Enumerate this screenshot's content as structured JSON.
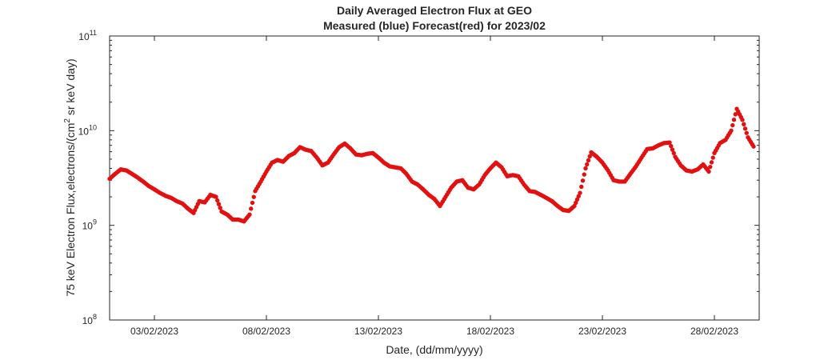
{
  "chart_data": {
    "type": "scatter",
    "title": "Daily Averaged Electron Flux at GEO",
    "subtitle": "Measured (blue) Forecast(red) for 2023/02",
    "xlabel": "Date, (dd/mm/yyyy)",
    "ylabel_main": "75 keV Electron Flux,electrons/(cm",
    "ylabel_sup": "2",
    "ylabel_rest": " sr keV day)",
    "y_scale": "log",
    "ylim": [
      100000000.0,
      100000000000.0
    ],
    "xlim": [
      "2023-02-01",
      "2023-03-02"
    ],
    "grid": false,
    "point_color": "#e41010",
    "x_ticks": [
      {
        "date": "2023-02-03",
        "label": "03/02/2023"
      },
      {
        "date": "2023-02-08",
        "label": "08/02/2023"
      },
      {
        "date": "2023-02-13",
        "label": "13/02/2023"
      },
      {
        "date": "2023-02-18",
        "label": "18/02/2023"
      },
      {
        "date": "2023-02-23",
        "label": "23/02/2023"
      },
      {
        "date": "2023-02-28",
        "label": "28/02/2023"
      }
    ],
    "y_ticks": [
      {
        "value": 100000000.0,
        "base": "10",
        "exp": "8"
      },
      {
        "value": 1000000000.0,
        "base": "10",
        "exp": "9"
      },
      {
        "value": 10000000000.0,
        "base": "10",
        "exp": "10"
      },
      {
        "value": 100000000000.0,
        "base": "10",
        "exp": "11"
      }
    ],
    "series": [
      {
        "points": [
          [
            "2023-02-01 00:00",
            3100000000.0
          ],
          [
            "2023-02-01 06:00",
            3500000000.0
          ],
          [
            "2023-02-01 12:00",
            3900000000.0
          ],
          [
            "2023-02-01 18:00",
            3800000000.0
          ],
          [
            "2023-02-02 00:00",
            3500000000.0
          ],
          [
            "2023-02-02 06:00",
            3200000000.0
          ],
          [
            "2023-02-02 12:00",
            2900000000.0
          ],
          [
            "2023-02-02 18:00",
            2600000000.0
          ],
          [
            "2023-02-03 00:00",
            2400000000.0
          ],
          [
            "2023-02-03 06:00",
            2200000000.0
          ],
          [
            "2023-02-03 12:00",
            2050000000.0
          ],
          [
            "2023-02-03 18:00",
            1950000000.0
          ],
          [
            "2023-02-04 00:00",
            1800000000.0
          ],
          [
            "2023-02-04 06:00",
            1700000000.0
          ],
          [
            "2023-02-04 12:00",
            1500000000.0
          ],
          [
            "2023-02-04 18:00",
            1350000000.0
          ],
          [
            "2023-02-05 00:00",
            1800000000.0
          ],
          [
            "2023-02-05 06:00",
            1750000000.0
          ],
          [
            "2023-02-05 12:00",
            2100000000.0
          ],
          [
            "2023-02-05 18:00",
            2000000000.0
          ],
          [
            "2023-02-06 00:00",
            1400000000.0
          ],
          [
            "2023-02-06 06:00",
            1300000000.0
          ],
          [
            "2023-02-06 12:00",
            1150000000.0
          ],
          [
            "2023-02-06 18:00",
            1150000000.0
          ],
          [
            "2023-02-07 00:00",
            1100000000.0
          ],
          [
            "2023-02-07 06:00",
            1300000000.0
          ],
          [
            "2023-02-07 12:00",
            2300000000.0
          ],
          [
            "2023-02-07 18:00",
            2900000000.0
          ],
          [
            "2023-02-08 00:00",
            3700000000.0
          ],
          [
            "2023-02-08 06:00",
            4600000000.0
          ],
          [
            "2023-02-08 12:00",
            4900000000.0
          ],
          [
            "2023-02-08 18:00",
            4700000000.0
          ],
          [
            "2023-02-09 00:00",
            5400000000.0
          ],
          [
            "2023-02-09 06:00",
            5800000000.0
          ],
          [
            "2023-02-09 12:00",
            6700000000.0
          ],
          [
            "2023-02-09 18:00",
            6300000000.0
          ],
          [
            "2023-02-10 00:00",
            6100000000.0
          ],
          [
            "2023-02-10 06:00",
            5200000000.0
          ],
          [
            "2023-02-10 12:00",
            4300000000.0
          ],
          [
            "2023-02-10 18:00",
            4600000000.0
          ],
          [
            "2023-02-11 00:00",
            5600000000.0
          ],
          [
            "2023-02-11 06:00",
            6700000000.0
          ],
          [
            "2023-02-11 12:00",
            7300000000.0
          ],
          [
            "2023-02-11 18:00",
            6500000000.0
          ],
          [
            "2023-02-12 00:00",
            5600000000.0
          ],
          [
            "2023-02-12 06:00",
            5500000000.0
          ],
          [
            "2023-02-12 12:00",
            5700000000.0
          ],
          [
            "2023-02-12 18:00",
            5800000000.0
          ],
          [
            "2023-02-13 00:00",
            5200000000.0
          ],
          [
            "2023-02-13 06:00",
            4600000000.0
          ],
          [
            "2023-02-13 12:00",
            4200000000.0
          ],
          [
            "2023-02-13 18:00",
            4100000000.0
          ],
          [
            "2023-02-14 00:00",
            4000000000.0
          ],
          [
            "2023-02-14 06:00",
            3500000000.0
          ],
          [
            "2023-02-14 12:00",
            2900000000.0
          ],
          [
            "2023-02-14 18:00",
            2700000000.0
          ],
          [
            "2023-02-15 00:00",
            2400000000.0
          ],
          [
            "2023-02-15 06:00",
            2100000000.0
          ],
          [
            "2023-02-15 12:00",
            1900000000.0
          ],
          [
            "2023-02-15 18:00",
            1600000000.0
          ],
          [
            "2023-02-16 00:00",
            2000000000.0
          ],
          [
            "2023-02-16 06:00",
            2500000000.0
          ],
          [
            "2023-02-16 12:00",
            2900000000.0
          ],
          [
            "2023-02-16 18:00",
            3000000000.0
          ],
          [
            "2023-02-17 00:00",
            2500000000.0
          ],
          [
            "2023-02-17 06:00",
            2400000000.0
          ],
          [
            "2023-02-17 12:00",
            2700000000.0
          ],
          [
            "2023-02-17 18:00",
            3400000000.0
          ],
          [
            "2023-02-18 00:00",
            4000000000.0
          ],
          [
            "2023-02-18 06:00",
            4600000000.0
          ],
          [
            "2023-02-18 12:00",
            4100000000.0
          ],
          [
            "2023-02-18 18:00",
            3300000000.0
          ],
          [
            "2023-02-19 00:00",
            3400000000.0
          ],
          [
            "2023-02-19 06:00",
            3300000000.0
          ],
          [
            "2023-02-19 12:00",
            2700000000.0
          ],
          [
            "2023-02-19 18:00",
            2300000000.0
          ],
          [
            "2023-02-20 00:00",
            2250000000.0
          ],
          [
            "2023-02-20 06:00",
            2100000000.0
          ],
          [
            "2023-02-20 12:00",
            1950000000.0
          ],
          [
            "2023-02-20 18:00",
            1800000000.0
          ],
          [
            "2023-02-21 00:00",
            1600000000.0
          ],
          [
            "2023-02-21 06:00",
            1450000000.0
          ],
          [
            "2023-02-21 12:00",
            1420000000.0
          ],
          [
            "2023-02-21 18:00",
            1600000000.0
          ],
          [
            "2023-02-22 00:00",
            2200000000.0
          ],
          [
            "2023-02-22 06:00",
            4000000000.0
          ],
          [
            "2023-02-22 12:00",
            5900000000.0
          ],
          [
            "2023-02-22 18:00",
            5300000000.0
          ],
          [
            "2023-02-23 00:00",
            4600000000.0
          ],
          [
            "2023-02-23 06:00",
            3800000000.0
          ],
          [
            "2023-02-23 12:00",
            3000000000.0
          ],
          [
            "2023-02-23 18:00",
            2900000000.0
          ],
          [
            "2023-02-24 00:00",
            2900000000.0
          ],
          [
            "2023-02-24 06:00",
            3500000000.0
          ],
          [
            "2023-02-24 12:00",
            4200000000.0
          ],
          [
            "2023-02-24 18:00",
            5200000000.0
          ],
          [
            "2023-02-25 00:00",
            6400000000.0
          ],
          [
            "2023-02-25 06:00",
            6500000000.0
          ],
          [
            "2023-02-25 12:00",
            7000000000.0
          ],
          [
            "2023-02-25 18:00",
            7400000000.0
          ],
          [
            "2023-02-26 00:00",
            7500000000.0
          ],
          [
            "2023-02-26 06:00",
            5300000000.0
          ],
          [
            "2023-02-26 12:00",
            4300000000.0
          ],
          [
            "2023-02-26 18:00",
            3800000000.0
          ],
          [
            "2023-02-27 00:00",
            3700000000.0
          ],
          [
            "2023-02-27 06:00",
            3900000000.0
          ],
          [
            "2023-02-27 12:00",
            4400000000.0
          ],
          [
            "2023-02-27 18:00",
            3700000000.0
          ],
          [
            "2023-02-28 00:00",
            5800000000.0
          ],
          [
            "2023-02-28 06:00",
            7400000000.0
          ],
          [
            "2023-02-28 12:00",
            8000000000.0
          ],
          [
            "2023-02-28 18:00",
            10000000000.0
          ],
          [
            "2023-03-01 00:00",
            17000000000.0
          ],
          [
            "2023-03-01 06:00",
            13000000000.0
          ],
          [
            "2023-03-01 12:00",
            8500000000.0
          ],
          [
            "2023-03-01 18:00",
            6800000000.0
          ]
        ]
      }
    ]
  }
}
